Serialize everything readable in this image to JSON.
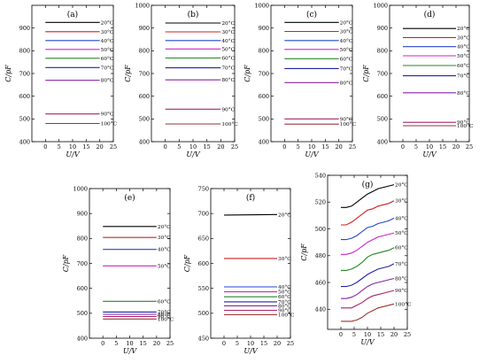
{
  "chart_data": [
    {
      "panel": "(a)",
      "type": "line",
      "xlabel": "U/V",
      "ylabel": "C/pF",
      "xlim": [
        -5,
        25
      ],
      "ylim": [
        400,
        1000
      ],
      "xticks": [
        0,
        5,
        10,
        15,
        20,
        25
      ],
      "yticks": [
        400,
        500,
        600,
        700,
        800,
        900
      ],
      "series": [
        {
          "name": "20°C",
          "color": "#000000",
          "x": [
            0,
            20
          ],
          "y": [
            925,
            925
          ]
        },
        {
          "name": "30°C",
          "color": "#cc2222",
          "x": [
            0,
            20
          ],
          "y": [
            884,
            884
          ]
        },
        {
          "name": "40°C",
          "color": "#2244cc",
          "x": [
            0,
            20
          ],
          "y": [
            845,
            845
          ]
        },
        {
          "name": "50°C",
          "color": "#cc22cc",
          "x": [
            0,
            20
          ],
          "y": [
            806,
            806
          ]
        },
        {
          "name": "60°C",
          "color": "#228822",
          "x": [
            0,
            20
          ],
          "y": [
            767,
            767
          ]
        },
        {
          "name": "70°C",
          "color": "#2222aa",
          "x": [
            0,
            20
          ],
          "y": [
            726,
            726
          ]
        },
        {
          "name": "80°C",
          "color": "#8822aa",
          "x": [
            0,
            20
          ],
          "y": [
            670,
            670
          ]
        },
        {
          "name": "90°C",
          "color": "#aa2266",
          "x": [
            0,
            20
          ],
          "y": [
            522,
            522
          ]
        },
        {
          "name": "100°C",
          "color": "#993333",
          "x": [
            0,
            20
          ],
          "y": [
            480,
            480
          ]
        }
      ]
    },
    {
      "panel": "(b)",
      "type": "line",
      "xlabel": "U/V",
      "ylabel": "C/pF",
      "xlim": [
        -5,
        25
      ],
      "ylim": [
        400,
        1000
      ],
      "xticks": [
        0,
        5,
        10,
        15,
        20,
        25
      ],
      "yticks": [
        400,
        500,
        600,
        700,
        800,
        900,
        1000
      ],
      "series": [
        {
          "name": "20°C",
          "color": "#000000",
          "x": [
            0,
            20
          ],
          "y": [
            922,
            922
          ]
        },
        {
          "name": "30°C",
          "color": "#cc2222",
          "x": [
            0,
            20
          ],
          "y": [
            883,
            883
          ]
        },
        {
          "name": "40°C",
          "color": "#2244cc",
          "x": [
            0,
            20
          ],
          "y": [
            845,
            845
          ]
        },
        {
          "name": "50°C",
          "color": "#cc22cc",
          "x": [
            0,
            20
          ],
          "y": [
            808,
            808
          ]
        },
        {
          "name": "60°C",
          "color": "#228822",
          "x": [
            0,
            20
          ],
          "y": [
            768,
            768
          ]
        },
        {
          "name": "70°C",
          "color": "#2222aa",
          "x": [
            0,
            20
          ],
          "y": [
            725,
            725
          ]
        },
        {
          "name": "80°C",
          "color": "#8822aa",
          "x": [
            0,
            20
          ],
          "y": [
            672,
            672
          ]
        },
        {
          "name": "90°C",
          "color": "#aa2266",
          "x": [
            0,
            20
          ],
          "y": [
            543,
            543
          ]
        },
        {
          "name": "100°C",
          "color": "#993333",
          "x": [
            0,
            20
          ],
          "y": [
            478,
            478
          ]
        }
      ]
    },
    {
      "panel": "(c)",
      "type": "line",
      "xlabel": "U/V",
      "ylabel": "C/pF",
      "xlim": [
        -5,
        25
      ],
      "ylim": [
        400,
        1000
      ],
      "xticks": [
        0,
        5,
        10,
        15,
        20,
        25
      ],
      "yticks": [
        400,
        500,
        600,
        700,
        800,
        900,
        1000
      ],
      "series": [
        {
          "name": "20°C",
          "color": "#000000",
          "x": [
            0,
            20
          ],
          "y": [
            925,
            925
          ]
        },
        {
          "name": "30°C",
          "color": "#cc2222",
          "x": [
            0,
            20
          ],
          "y": [
            885,
            885
          ]
        },
        {
          "name": "40°C",
          "color": "#2244cc",
          "x": [
            0,
            20
          ],
          "y": [
            845,
            845
          ]
        },
        {
          "name": "50°C",
          "color": "#cc22cc",
          "x": [
            0,
            20
          ],
          "y": [
            806,
            806
          ]
        },
        {
          "name": "60°C",
          "color": "#228822",
          "x": [
            0,
            20
          ],
          "y": [
            765,
            765
          ]
        },
        {
          "name": "70°C",
          "color": "#2222aa",
          "x": [
            0,
            20
          ],
          "y": [
            722,
            722
          ]
        },
        {
          "name": "80°C",
          "color": "#8822aa",
          "x": [
            0,
            20
          ],
          "y": [
            660,
            660
          ]
        },
        {
          "name": "90°C",
          "color": "#aa2266",
          "x": [
            0,
            20
          ],
          "y": [
            500,
            500
          ]
        },
        {
          "name": "100°C",
          "color": "#993333",
          "x": [
            0,
            20
          ],
          "y": [
            477,
            477
          ]
        }
      ]
    },
    {
      "panel": "(d)",
      "type": "line",
      "xlabel": "U/V",
      "ylabel": "C/pF",
      "xlim": [
        -5,
        25
      ],
      "ylim": [
        400,
        1000
      ],
      "xticks": [
        0,
        5,
        10,
        15,
        20,
        25
      ],
      "yticks": [
        400,
        500,
        600,
        700,
        800,
        900,
        1000
      ],
      "series": [
        {
          "name": "20°C",
          "color": "#000000",
          "x": [
            0,
            20
          ],
          "y": [
            898,
            898
          ]
        },
        {
          "name": "30°C",
          "color": "#cc2222",
          "x": [
            0,
            20
          ],
          "y": [
            858,
            858
          ]
        },
        {
          "name": "40°C",
          "color": "#2244cc",
          "x": [
            0,
            20
          ],
          "y": [
            818,
            818
          ]
        },
        {
          "name": "50°C",
          "color": "#cc22cc",
          "x": [
            0,
            20
          ],
          "y": [
            778,
            778
          ]
        },
        {
          "name": "60°C",
          "color": "#228822",
          "x": [
            0,
            20
          ],
          "y": [
            735,
            735
          ]
        },
        {
          "name": "70°C",
          "color": "#2222aa",
          "x": [
            0,
            20
          ],
          "y": [
            690,
            690
          ]
        },
        {
          "name": "80°C",
          "color": "#8822aa",
          "x": [
            0,
            20
          ],
          "y": [
            615,
            615
          ]
        },
        {
          "name": "90°C",
          "color": "#aa2266",
          "x": [
            0,
            20
          ],
          "y": [
            485,
            485
          ]
        },
        {
          "name": "100°C",
          "color": "#993333",
          "x": [
            0,
            20
          ],
          "y": [
            470,
            470
          ]
        }
      ]
    },
    {
      "panel": "(e)",
      "type": "line",
      "xlabel": "U/V",
      "ylabel": "C/pF",
      "xlim": [
        -5,
        25
      ],
      "ylim": [
        400,
        1000
      ],
      "xticks": [
        0,
        5,
        10,
        15,
        20,
        25
      ],
      "yticks": [
        400,
        500,
        600,
        700,
        800,
        900,
        1000
      ],
      "series": [
        {
          "name": "20°C",
          "color": "#000000",
          "x": [
            0,
            20
          ],
          "y": [
            848,
            848
          ]
        },
        {
          "name": "30°C",
          "color": "#cc2222",
          "x": [
            0,
            20
          ],
          "y": [
            804,
            804
          ]
        },
        {
          "name": "40°C",
          "color": "#2244cc",
          "x": [
            0,
            20
          ],
          "y": [
            756,
            756
          ]
        },
        {
          "name": "50°C",
          "color": "#cc22cc",
          "x": [
            0,
            20
          ],
          "y": [
            690,
            690
          ]
        },
        {
          "name": "60°C",
          "color": "#228822",
          "x": [
            0,
            20
          ],
          "y": [
            548,
            548
          ]
        },
        {
          "name": "70°C",
          "color": "#2222aa",
          "x": [
            0,
            20
          ],
          "y": [
            505,
            505
          ]
        },
        {
          "name": "80°C",
          "color": "#8822aa",
          "x": [
            0,
            20
          ],
          "y": [
            496,
            496
          ]
        },
        {
          "name": "90°C",
          "color": "#aa2266",
          "x": [
            0,
            20
          ],
          "y": [
            487,
            487
          ]
        },
        {
          "name": "100°C",
          "color": "#993333",
          "x": [
            0,
            20
          ],
          "y": [
            477,
            477
          ]
        }
      ]
    },
    {
      "panel": "(f)",
      "type": "line",
      "xlabel": "U/V",
      "ylabel": "C/pF",
      "xlim": [
        -5,
        25
      ],
      "ylim": [
        450,
        750
      ],
      "xticks": [
        0,
        5,
        10,
        15,
        20,
        25
      ],
      "yticks": [
        450,
        500,
        550,
        600,
        650,
        700,
        750
      ],
      "series": [
        {
          "name": "20°C",
          "color": "#000000",
          "x": [
            0,
            20
          ],
          "y": [
            697,
            698
          ]
        },
        {
          "name": "30°C",
          "color": "#cc2222",
          "x": [
            0,
            20
          ],
          "y": [
            610,
            610
          ]
        },
        {
          "name": "40°C",
          "color": "#2244cc",
          "x": [
            0,
            20
          ],
          "y": [
            553,
            553
          ]
        },
        {
          "name": "50°C",
          "color": "#cc22cc",
          "x": [
            0,
            20
          ],
          "y": [
            543,
            543
          ]
        },
        {
          "name": "60°C",
          "color": "#228822",
          "x": [
            0,
            20
          ],
          "y": [
            533,
            533
          ]
        },
        {
          "name": "70°C",
          "color": "#2222aa",
          "x": [
            0,
            20
          ],
          "y": [
            523,
            523
          ]
        },
        {
          "name": "80°C",
          "color": "#8822aa",
          "x": [
            0,
            20
          ],
          "y": [
            515,
            515
          ]
        },
        {
          "name": "90°C",
          "color": "#aa2266",
          "x": [
            0,
            20
          ],
          "y": [
            506,
            506
          ]
        },
        {
          "name": "100°C",
          "color": "#993333",
          "x": [
            0,
            20
          ],
          "y": [
            497,
            497
          ]
        }
      ]
    },
    {
      "panel": "(g)",
      "type": "line",
      "xlabel": "U/V",
      "ylabel": "C/pF",
      "xlim": [
        -5,
        25
      ],
      "ylim": [
        425,
        540
      ],
      "xticks": [
        0,
        5,
        10,
        15,
        20,
        25
      ],
      "yticks": [
        440,
        460,
        480,
        500,
        520,
        540
      ],
      "series": [
        {
          "name": "20°C",
          "color": "#000000",
          "x": [
            0,
            2,
            4,
            6,
            8,
            10,
            12,
            14,
            16,
            18,
            20
          ],
          "y": [
            516,
            516,
            517,
            520,
            523,
            526,
            528,
            530,
            531,
            532,
            533
          ]
        },
        {
          "name": "30°C",
          "color": "#cc2222",
          "x": [
            0,
            2,
            4,
            6,
            8,
            10,
            12,
            14,
            16,
            18,
            20
          ],
          "y": [
            503,
            503,
            505,
            508,
            511,
            514,
            515,
            517,
            518,
            519,
            521
          ]
        },
        {
          "name": "40°C",
          "color": "#2244cc",
          "x": [
            0,
            2,
            4,
            6,
            8,
            10,
            12,
            14,
            16,
            18,
            20
          ],
          "y": [
            492,
            492,
            493,
            495,
            498,
            501,
            502,
            504,
            505,
            506,
            508
          ]
        },
        {
          "name": "50°C",
          "color": "#cc22cc",
          "x": [
            0,
            2,
            4,
            6,
            8,
            10,
            12,
            14,
            16,
            18,
            20
          ],
          "y": [
            481,
            481,
            482,
            484,
            487,
            490,
            492,
            494,
            495,
            496,
            497
          ]
        },
        {
          "name": "60°C",
          "color": "#228822",
          "x": [
            0,
            2,
            4,
            6,
            8,
            10,
            12,
            14,
            16,
            18,
            20
          ],
          "y": [
            469,
            469,
            470,
            472,
            475,
            479,
            481,
            482,
            483,
            484,
            486
          ]
        },
        {
          "name": "70°C",
          "color": "#2222aa",
          "x": [
            0,
            2,
            4,
            6,
            8,
            10,
            12,
            14,
            16,
            18,
            20
          ],
          "y": [
            457,
            457,
            458,
            460,
            463,
            466,
            468,
            470,
            471,
            472,
            474
          ]
        },
        {
          "name": "80°C",
          "color": "#8822aa",
          "x": [
            0,
            2,
            4,
            6,
            8,
            10,
            12,
            14,
            16,
            18,
            20
          ],
          "y": [
            448,
            448,
            449,
            451,
            454,
            457,
            459,
            460,
            461,
            462,
            463
          ]
        },
        {
          "name": "90°C",
          "color": "#aa2266",
          "x": [
            0,
            2,
            4,
            6,
            8,
            10,
            12,
            14,
            16,
            18,
            20
          ],
          "y": [
            441,
            441,
            441,
            443,
            445,
            448,
            450,
            451,
            452,
            453,
            454
          ]
        },
        {
          "name": "100°C",
          "color": "#993333",
          "x": [
            0,
            2,
            4,
            6,
            8,
            10,
            12,
            14,
            16,
            18,
            20
          ],
          "y": [
            431,
            431,
            431,
            432,
            434,
            437,
            439,
            441,
            442,
            443,
            444
          ]
        }
      ]
    }
  ]
}
